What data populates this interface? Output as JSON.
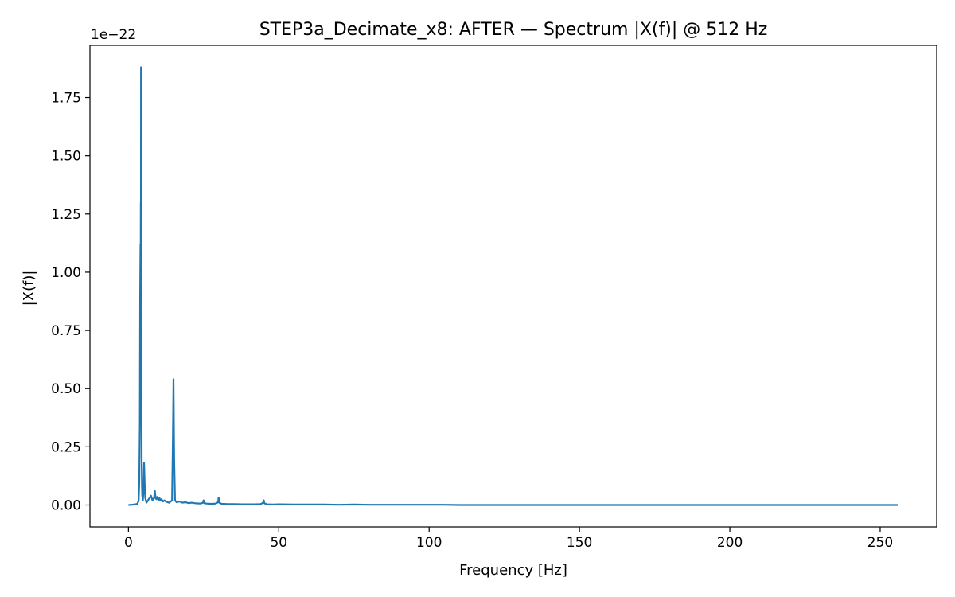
{
  "chart_data": {
    "type": "line",
    "title": "STEP3a_Decimate_x8: AFTER — Spectrum |X(f)| @ 512 Hz",
    "xlabel": "Frequency [Hz]",
    "ylabel": "|X(f)|",
    "y_offset_label": "1e−22",
    "xlim": [
      -12.8,
      268.8
    ],
    "ylim": [
      -0.094,
      1.974
    ],
    "x_ticks": [
      0,
      50,
      100,
      150,
      200,
      250
    ],
    "x_tick_labels": [
      "0",
      "50",
      "100",
      "150",
      "200",
      "250"
    ],
    "y_ticks": [
      0,
      0.25,
      0.5,
      0.75,
      1.0,
      1.25,
      1.5,
      1.75
    ],
    "y_tick_labels": [
      "0.00",
      "0.25",
      "0.50",
      "0.75",
      "1.00",
      "1.25",
      "1.50",
      "1.75"
    ],
    "grid": false,
    "series": [
      {
        "name": "|X(f)|",
        "color": "#1f77b4",
        "x": [
          0,
          1,
          2,
          3,
          3.4,
          3.6,
          3.8,
          3.9,
          4.0,
          4.05,
          4.1,
          4.15,
          4.2,
          4.25,
          4.3,
          4.35,
          4.4,
          4.5,
          4.6,
          4.8,
          5.0,
          5.2,
          5.4,
          5.6,
          5.8,
          6.0,
          6.5,
          7.0,
          7.5,
          8.0,
          8.5,
          8.8,
          9.0,
          9.3,
          9.6,
          10.0,
          10.3,
          10.6,
          11.0,
          11.5,
          12.0,
          12.5,
          13.0,
          13.5,
          14.0,
          14.5,
          14.8,
          15.0,
          15.2,
          15.5,
          16.0,
          17.0,
          18.0,
          19.0,
          20.0,
          21.0,
          22.0,
          23.0,
          24.0,
          24.8,
          25.0,
          25.2,
          26.0,
          27.0,
          28.0,
          29.0,
          29.8,
          30.0,
          30.2,
          31.0,
          33.0,
          35.0,
          38.0,
          40.0,
          42.0,
          44.0,
          44.8,
          45.0,
          45.2,
          46.0,
          48.0,
          50.0,
          55.0,
          60.0,
          65.0,
          70.0,
          75.0,
          80.0,
          85.0,
          90.0,
          95.0,
          100.0,
          105.0,
          110.0,
          120.0,
          130.0,
          140.0,
          150.0,
          175.0,
          200.0,
          225.0,
          250.0,
          256.0
        ],
        "values": [
          0.0,
          0.001,
          0.002,
          0.005,
          0.02,
          0.1,
          0.35,
          0.9,
          1.12,
          0.85,
          1.3,
          1.0,
          1.88,
          1.2,
          0.9,
          0.5,
          0.2,
          0.08,
          0.04,
          0.02,
          0.06,
          0.18,
          0.09,
          0.03,
          0.02,
          0.01,
          0.02,
          0.03,
          0.04,
          0.02,
          0.03,
          0.06,
          0.03,
          0.025,
          0.035,
          0.02,
          0.03,
          0.02,
          0.025,
          0.015,
          0.02,
          0.015,
          0.012,
          0.01,
          0.015,
          0.02,
          0.3,
          0.54,
          0.2,
          0.02,
          0.012,
          0.015,
          0.01,
          0.012,
          0.008,
          0.01,
          0.008,
          0.007,
          0.006,
          0.01,
          0.02,
          0.008,
          0.006,
          0.005,
          0.005,
          0.006,
          0.012,
          0.032,
          0.01,
          0.005,
          0.004,
          0.004,
          0.003,
          0.003,
          0.003,
          0.004,
          0.01,
          0.02,
          0.008,
          0.003,
          0.002,
          0.003,
          0.002,
          0.002,
          0.002,
          0.001,
          0.002,
          0.001,
          0.001,
          0.001,
          0.001,
          0.001,
          0.001,
          0.0,
          0.0,
          0.0,
          0.0,
          0.0,
          0.0,
          0.0,
          0.0,
          0.0,
          0.0
        ]
      }
    ]
  }
}
